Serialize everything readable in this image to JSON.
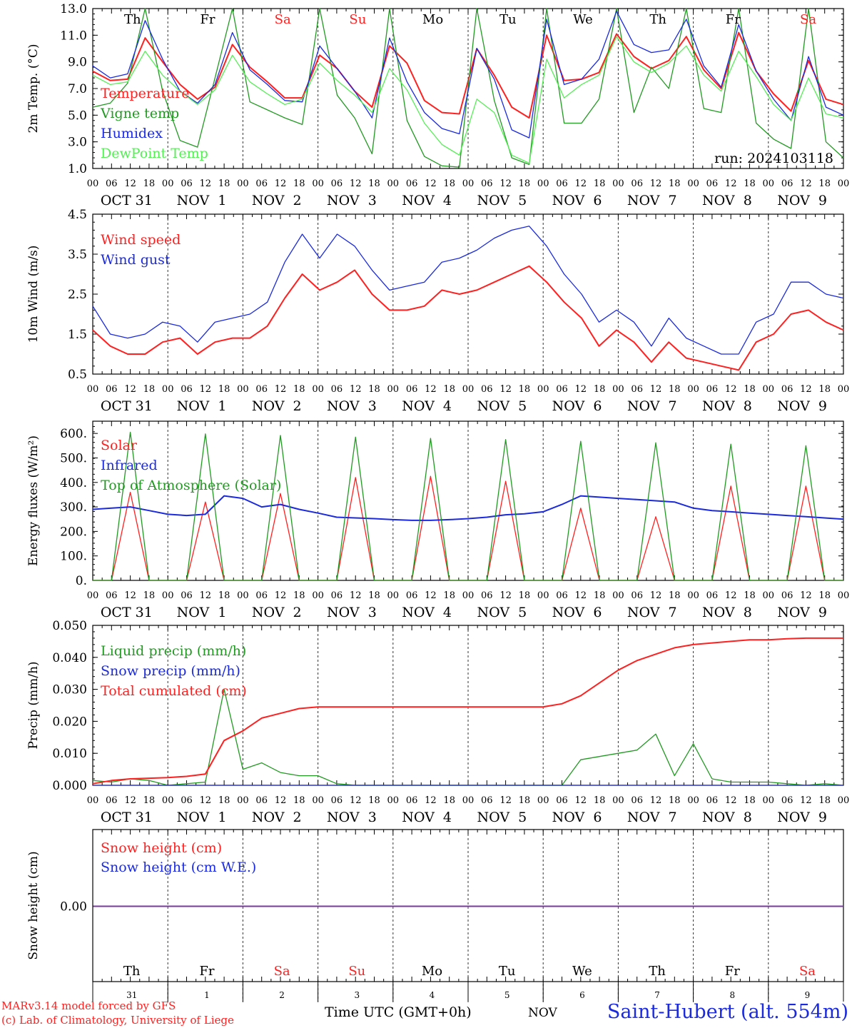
{
  "colors": {
    "red": "#ff2020",
    "green": "#229922",
    "blue": "#1a2adc",
    "light_green": "#55ee55",
    "purple": "#7a3aa0",
    "axis": "#000000"
  },
  "time_axis": {
    "hour_ticks": [
      "00",
      "06",
      "12",
      "18"
    ],
    "end_tick": "00",
    "date_labels": [
      "OCT 31",
      "NOV  1",
      "NOV  2",
      "NOV  3",
      "NOV  4",
      "NOV  5",
      "NOV  6",
      "NOV  7",
      "NOV  8",
      "NOV  9"
    ],
    "weekdays": [
      {
        "label": "Th",
        "color": "#000000"
      },
      {
        "label": "Fr",
        "color": "#000000"
      },
      {
        "label": "Sa",
        "color": "#ff2020"
      },
      {
        "label": "Su",
        "color": "#ff2020"
      },
      {
        "label": "Mo",
        "color": "#000000"
      },
      {
        "label": "Tu",
        "color": "#000000"
      },
      {
        "label": "We",
        "color": "#000000"
      },
      {
        "label": "Th",
        "color": "#000000"
      },
      {
        "label": "Fr",
        "color": "#000000"
      },
      {
        "label": "Sa",
        "color": "#ff2020"
      }
    ],
    "day_numbers": [
      "31",
      "1",
      "2",
      "3",
      "4",
      "5",
      "6",
      "7",
      "8",
      "9"
    ]
  },
  "footer": {
    "model_line": "MARv3.14 model forced by GFS",
    "lab_line": "(c) Lab. of Climatology, University of Liege",
    "time_label": "Time UTC (GMT+0h)",
    "month_label": "NOV",
    "station": "Saint-Hubert (alt. 554m)"
  },
  "chart_data": [
    {
      "type": "line",
      "ylabel": "2m Temp. (°C)",
      "ylim": [
        1.0,
        13.0
      ],
      "yticks": [
        "1.0",
        "3.0",
        "5.0",
        "7.0",
        "9.0",
        "11.0",
        "13.0"
      ],
      "annotation": "run: 2024103118",
      "x_hours_step": 6,
      "series": [
        {
          "name": "Temperature",
          "color": "#ff2020",
          "values": [
            8.3,
            7.6,
            7.7,
            10.8,
            9.0,
            7.3,
            6.2,
            7.1,
            10.3,
            8.6,
            7.5,
            6.3,
            6.3,
            9.5,
            8.5,
            6.8,
            5.6,
            10.2,
            8.9,
            6.1,
            5.2,
            5.1,
            10.0,
            8.0,
            5.6,
            4.8,
            11.0,
            7.6,
            7.7,
            8.2,
            11.1,
            9.4,
            8.5,
            9.1,
            10.9,
            8.4,
            7.0,
            11.2,
            8.3,
            6.6,
            5.3,
            9.1,
            6.2,
            5.8
          ]
        },
        {
          "name": "Vigne temp",
          "color": "#229922",
          "values": [
            5.6,
            5.9,
            7.4,
            13.1,
            6.8,
            3.1,
            2.6,
            7.8,
            14.5,
            6.0,
            5.4,
            4.8,
            4.3,
            13.9,
            6.5,
            4.8,
            2.1,
            14.3,
            4.6,
            1.9,
            1.2,
            1.1,
            13.0,
            6.1,
            1.8,
            1.3,
            14.5,
            4.4,
            4.4,
            6.2,
            14.5,
            5.2,
            8.6,
            7.0,
            14.5,
            5.5,
            5.2,
            14.5,
            4.4,
            3.2,
            2.5,
            13.5,
            3.0,
            1.8
          ]
        },
        {
          "name": "Humidex",
          "color": "#1a2adc",
          "values": [
            8.7,
            7.8,
            8.1,
            12.1,
            9.2,
            6.8,
            5.9,
            7.3,
            11.2,
            8.4,
            7.3,
            6.1,
            6.0,
            10.2,
            8.5,
            6.8,
            4.8,
            10.8,
            7.5,
            5.2,
            4.0,
            3.6,
            10.0,
            7.7,
            3.9,
            3.3,
            12.2,
            7.3,
            7.7,
            9.2,
            12.8,
            10.3,
            9.7,
            9.9,
            12.2,
            8.7,
            7.1,
            11.8,
            8.3,
            6.2,
            4.6,
            9.4,
            5.6,
            5.0
          ]
        },
        {
          "name": "DewPoint Temp",
          "color": "#55ee55",
          "values": [
            8.0,
            7.3,
            7.5,
            9.8,
            8.0,
            6.8,
            5.8,
            6.9,
            9.5,
            7.5,
            6.6,
            5.8,
            6.2,
            8.9,
            7.6,
            6.5,
            5.2,
            8.5,
            6.9,
            4.4,
            2.8,
            2.0,
            6.2,
            5.2,
            2.0,
            1.4,
            9.2,
            6.3,
            7.3,
            8.0,
            10.9,
            9.0,
            8.2,
            8.9,
            10.2,
            8.0,
            6.8,
            9.8,
            7.9,
            5.8,
            4.6,
            7.8,
            5.1,
            4.8
          ]
        }
      ]
    },
    {
      "type": "line",
      "ylabel": "10m Wind (m/s)",
      "ylim": [
        0.5,
        4.5
      ],
      "yticks": [
        "0.5",
        "1.5",
        "2.5",
        "3.5",
        "4.5"
      ],
      "x_hours_step": 6,
      "series": [
        {
          "name": "Wind speed",
          "color": "#ff2020",
          "values": [
            1.6,
            1.2,
            1.0,
            1.0,
            1.3,
            1.4,
            1.0,
            1.3,
            1.4,
            1.4,
            1.7,
            2.4,
            3.0,
            2.6,
            2.8,
            3.1,
            2.5,
            2.1,
            2.1,
            2.2,
            2.6,
            2.5,
            2.6,
            2.8,
            3.0,
            3.2,
            2.8,
            2.3,
            1.9,
            1.2,
            1.6,
            1.3,
            0.8,
            1.3,
            0.9,
            0.8,
            0.7,
            0.6,
            1.3,
            1.5,
            2.0,
            2.1,
            1.8,
            1.6
          ]
        },
        {
          "name": "Wind gust",
          "color": "#1a2adc",
          "values": [
            2.2,
            1.5,
            1.4,
            1.5,
            1.8,
            1.7,
            1.3,
            1.8,
            1.9,
            2.0,
            2.3,
            3.3,
            4.0,
            3.4,
            4.0,
            3.7,
            3.1,
            2.6,
            2.7,
            2.8,
            3.3,
            3.4,
            3.6,
            3.9,
            4.1,
            4.2,
            3.7,
            3.0,
            2.5,
            1.8,
            2.1,
            1.8,
            1.2,
            1.9,
            1.4,
            1.2,
            1.0,
            1.0,
            1.8,
            2.0,
            2.8,
            2.8,
            2.5,
            2.4
          ]
        }
      ]
    },
    {
      "type": "line",
      "ylabel": "Energy fluxes (W/m²)",
      "ylim": [
        0,
        650
      ],
      "yticks": [
        "0.",
        "100.",
        "200.",
        "300.",
        "400.",
        "500.",
        "600."
      ],
      "x_hours_step": 6,
      "series": [
        {
          "name": "Solar",
          "color": "#ff2020",
          "values": [
            0,
            0,
            360,
            0,
            0,
            0,
            320,
            0,
            0,
            0,
            355,
            0,
            0,
            0,
            420,
            0,
            0,
            0,
            425,
            0,
            0,
            0,
            405,
            0,
            0,
            0,
            295,
            0,
            0,
            0,
            260,
            0,
            0,
            0,
            385,
            0,
            0,
            0,
            385,
            0,
            0
          ]
        },
        {
          "name": "Infrared",
          "color": "#1a2adc",
          "values": [
            290,
            295,
            300,
            285,
            270,
            265,
            270,
            345,
            335,
            300,
            310,
            290,
            275,
            258,
            255,
            252,
            248,
            245,
            245,
            248,
            252,
            258,
            268,
            272,
            280,
            310,
            345,
            340,
            335,
            330,
            325,
            320,
            295,
            285,
            280,
            275,
            270,
            265,
            260,
            255,
            250
          ]
        },
        {
          "name": "Top of Atmosphere (Solar)",
          "color": "#229922",
          "values": [
            0,
            0,
            605,
            0,
            0,
            0,
            598,
            0,
            0,
            0,
            592,
            0,
            0,
            0,
            585,
            0,
            0,
            0,
            580,
            0,
            0,
            0,
            575,
            0,
            0,
            0,
            568,
            0,
            0,
            0,
            562,
            0,
            0,
            0,
            556,
            0,
            0,
            0,
            550,
            0,
            0
          ]
        }
      ]
    },
    {
      "type": "line",
      "ylabel": "Precip (mm/h)",
      "ylim": [
        0.0,
        0.05
      ],
      "yticks": [
        "0.000",
        "0.010",
        "0.020",
        "0.030",
        "0.040",
        "0.050"
      ],
      "x_hours_step": 6,
      "series": [
        {
          "name": "Liquid precip (mm/h)",
          "color": "#229922",
          "values": [
            0.0015,
            0.001,
            0.002,
            0.0015,
            0.0,
            0.0005,
            0.001,
            0.03,
            0.005,
            0.007,
            0.004,
            0.003,
            0.003,
            0.0005,
            0.0,
            0.0,
            0.0,
            0.0,
            0.0,
            0.0,
            0.0,
            0.0,
            0.0,
            0.0,
            0.0,
            0.0,
            0.008,
            0.009,
            0.01,
            0.011,
            0.016,
            0.003,
            0.013,
            0.002,
            0.001,
            0.001,
            0.001,
            0.0005,
            0.0,
            0.0005,
            0.0
          ]
        },
        {
          "name": "Snow precip (mm/h)",
          "color": "#1a2adc",
          "values": [
            0,
            0,
            0,
            0,
            0,
            0,
            0,
            0,
            0,
            0,
            0,
            0,
            0,
            0,
            0,
            0,
            0,
            0,
            0,
            0,
            0,
            0,
            0,
            0,
            0,
            0,
            0,
            0,
            0,
            0,
            0,
            0,
            0,
            0,
            0,
            0,
            0,
            0,
            0,
            0,
            0
          ]
        },
        {
          "name": "Total cumulated (cm)",
          "color": "#ff2020",
          "values": [
            0.0005,
            0.0015,
            0.002,
            0.0022,
            0.0024,
            0.0028,
            0.0035,
            0.014,
            0.017,
            0.021,
            0.0225,
            0.024,
            0.0245,
            0.0245,
            0.0245,
            0.0245,
            0.0245,
            0.0245,
            0.0245,
            0.0245,
            0.0245,
            0.0245,
            0.0245,
            0.0245,
            0.0245,
            0.0255,
            0.028,
            0.032,
            0.036,
            0.039,
            0.041,
            0.043,
            0.044,
            0.0445,
            0.045,
            0.0455,
            0.0455,
            0.0458,
            0.046,
            0.046,
            0.046
          ]
        }
      ]
    },
    {
      "type": "line",
      "ylabel": "Snow height (cm)",
      "yticks": [
        "0.00"
      ],
      "x_hours_step": 6,
      "series": [
        {
          "name": "Snow height (cm)",
          "color": "#ff2020",
          "values": [
            0,
            0
          ]
        },
        {
          "name": "Snow height (cm W.E.)",
          "color": "#1a2adc",
          "values": [
            0,
            0
          ]
        }
      ]
    }
  ]
}
